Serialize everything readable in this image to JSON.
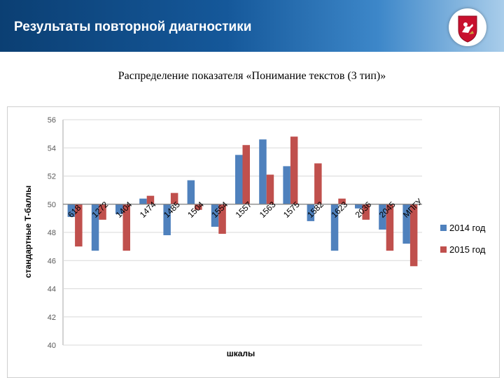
{
  "header": {
    "title": "Результаты повторной диагностики",
    "emblem_icon": "moscow-coat-of-arms-icon"
  },
  "chart_title": "Распределение показателя «Понимание текстов (3 тип)»",
  "chart_data": {
    "type": "bar",
    "xlabel": "шкалы",
    "ylabel": "стандартные Т-баллы",
    "ylim": [
      40,
      56
    ],
    "y_ticks": [
      "40",
      "42",
      "44",
      "46",
      "48",
      "50",
      "52",
      "54",
      "56"
    ],
    "baseline": 50,
    "grid": true,
    "legend_position": "right",
    "categories": [
      "618",
      "1272",
      "1404",
      "1474",
      "1485",
      "1504",
      "1554",
      "1557",
      "1563",
      "1575",
      "1582",
      "1623",
      "2036",
      "2045",
      "МПГУ"
    ],
    "series": [
      {
        "name": "2014 год",
        "color": "#4f81bd",
        "values": [
          49.1,
          46.7,
          49.3,
          50.4,
          47.8,
          51.7,
          48.4,
          53.5,
          54.6,
          52.7,
          48.8,
          46.7,
          49.7,
          48.2,
          47.2
        ]
      },
      {
        "name": "2015 год",
        "color": "#c0504d",
        "values": [
          47.0,
          48.9,
          46.7,
          50.6,
          50.8,
          49.6,
          47.9,
          54.2,
          52.1,
          54.8,
          52.9,
          50.4,
          48.9,
          46.7,
          45.6
        ]
      }
    ]
  }
}
